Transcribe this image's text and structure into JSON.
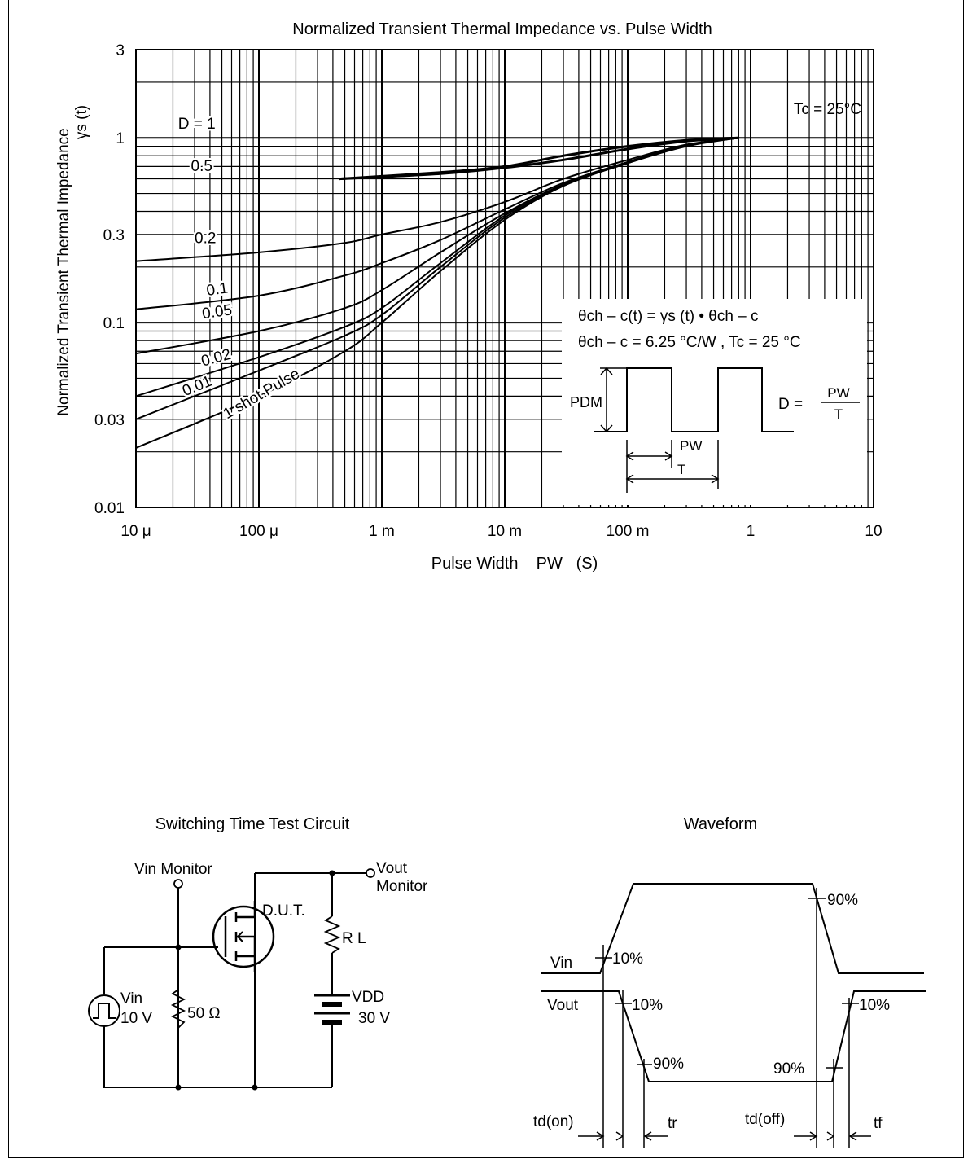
{
  "chart_data": {
    "type": "line",
    "title": "Normalized Transient Thermal Impedance vs. Pulse Width",
    "xlabel": "Pulse Width    PW   (S)",
    "ylabel_line1": "Normalized Transient Thermal Impedance",
    "ylabel_line2": "γs  (t)",
    "x_scale": "log",
    "y_scale": "log",
    "xlim": [
      1e-05,
      10
    ],
    "ylim": [
      0.01,
      3
    ],
    "grid": true,
    "x_ticks": [
      {
        "value": 1e-05,
        "label": "10 μ"
      },
      {
        "value": 0.0001,
        "label": "100 μ"
      },
      {
        "value": 0.001,
        "label": "1 m"
      },
      {
        "value": 0.01,
        "label": "10 m"
      },
      {
        "value": 0.1,
        "label": "100 m"
      },
      {
        "value": 1,
        "label": "1"
      },
      {
        "value": 10,
        "label": "10"
      }
    ],
    "y_ticks": [
      {
        "value": 0.01,
        "label": "0.01"
      },
      {
        "value": 0.03,
        "label": "0.03"
      },
      {
        "value": 0.1,
        "label": "0.1"
      },
      {
        "value": 0.3,
        "label": "0.3"
      },
      {
        "value": 1,
        "label": "1"
      },
      {
        "value": 3,
        "label": "3"
      }
    ],
    "series": [
      {
        "name": "D = 1",
        "points": [
          [
            0.00045,
            0.6
          ],
          [
            0.003,
            0.65
          ],
          [
            0.01,
            0.7
          ],
          [
            0.03,
            0.8
          ],
          [
            0.1,
            0.9
          ],
          [
            0.3,
            0.97
          ],
          [
            0.8,
            1.0
          ]
        ]
      },
      {
        "name": "0.5",
        "points": [
          [
            0.00045,
            0.6
          ],
          [
            0.003,
            0.64
          ],
          [
            0.01,
            0.69
          ],
          [
            0.03,
            0.76
          ],
          [
            0.1,
            0.87
          ],
          [
            0.3,
            0.96
          ],
          [
            0.8,
            1.0
          ]
        ]
      },
      {
        "name": "0.2",
        "points": [
          [
            1e-05,
            0.215
          ],
          [
            0.0001,
            0.24
          ],
          [
            0.0005,
            0.27
          ],
          [
            0.001,
            0.3
          ],
          [
            0.003,
            0.35
          ],
          [
            0.01,
            0.45
          ],
          [
            0.03,
            0.6
          ],
          [
            0.1,
            0.76
          ],
          [
            0.3,
            0.92
          ],
          [
            0.8,
            1.0
          ]
        ]
      },
      {
        "name": "0.1",
        "points": [
          [
            1e-05,
            0.118
          ],
          [
            0.0001,
            0.14
          ],
          [
            0.0005,
            0.18
          ],
          [
            0.001,
            0.21
          ],
          [
            0.003,
            0.28
          ],
          [
            0.01,
            0.41
          ],
          [
            0.03,
            0.57
          ],
          [
            0.1,
            0.74
          ],
          [
            0.3,
            0.91
          ],
          [
            0.8,
            1.0
          ]
        ]
      },
      {
        "name": "0.05",
        "points": [
          [
            1e-05,
            0.068
          ],
          [
            0.0001,
            0.09
          ],
          [
            0.0005,
            0.12
          ],
          [
            0.001,
            0.15
          ],
          [
            0.003,
            0.24
          ],
          [
            0.01,
            0.39
          ],
          [
            0.03,
            0.56
          ],
          [
            0.1,
            0.74
          ],
          [
            0.3,
            0.91
          ],
          [
            0.8,
            1.0
          ]
        ]
      },
      {
        "name": "0.02",
        "points": [
          [
            1e-05,
            0.04
          ],
          [
            0.0001,
            0.065
          ],
          [
            0.0005,
            0.095
          ],
          [
            0.001,
            0.12
          ],
          [
            0.003,
            0.21
          ],
          [
            0.01,
            0.38
          ],
          [
            0.03,
            0.555
          ],
          [
            0.1,
            0.74
          ],
          [
            0.3,
            0.91
          ],
          [
            0.8,
            1.0
          ]
        ]
      },
      {
        "name": "0.01",
        "points": [
          [
            1e-05,
            0.03
          ],
          [
            0.0001,
            0.055
          ],
          [
            0.0005,
            0.085
          ],
          [
            0.001,
            0.11
          ],
          [
            0.003,
            0.2
          ],
          [
            0.01,
            0.37
          ],
          [
            0.03,
            0.55
          ],
          [
            0.1,
            0.73
          ],
          [
            0.3,
            0.91
          ],
          [
            0.8,
            1.0
          ]
        ]
      },
      {
        "name": "1 shot Pulse",
        "points": [
          [
            1e-05,
            0.021
          ],
          [
            0.0001,
            0.04
          ],
          [
            0.0005,
            0.07
          ],
          [
            0.001,
            0.1
          ],
          [
            0.003,
            0.19
          ],
          [
            0.01,
            0.36
          ],
          [
            0.03,
            0.55
          ],
          [
            0.1,
            0.73
          ],
          [
            0.3,
            0.9
          ],
          [
            0.8,
            1.0
          ]
        ]
      }
    ],
    "series_labels": [
      {
        "text": "D = 1",
        "x": 2.2e-05,
        "y": 1.12,
        "rot": 0
      },
      {
        "text": "0.5",
        "x": 2.8e-05,
        "y": 0.66,
        "rot": 0
      },
      {
        "text": "0.2",
        "x": 3e-05,
        "y": 0.27,
        "rot": 0
      },
      {
        "text": "0.1",
        "x": 3.8e-05,
        "y": 0.14,
        "rot": -8
      },
      {
        "text": "0.05",
        "x": 3.5e-05,
        "y": 0.105,
        "rot": -8
      },
      {
        "text": "0.02",
        "x": 3.5e-05,
        "y": 0.058,
        "rot": -15
      },
      {
        "text": "0.01",
        "x": 2.5e-05,
        "y": 0.04,
        "rot": -22
      },
      {
        "text": "1 shot Pulse",
        "x": 5.5e-05,
        "y": 0.03,
        "rot": -30
      }
    ],
    "annotation_tc": "Tc = 25°C"
  },
  "inset": {
    "eq1": "θch – c(t) = γs (t) • θch – c",
    "eq2": "θch – c = 6.25 °C/W , Tc = 25 °C",
    "pdm": "PDM",
    "pw": "PW",
    "t": "T",
    "d_eq": "D =",
    "d_num": "PW",
    "d_den": "T"
  },
  "circuit": {
    "title": "Switching Time Test Circuit",
    "vin_monitor": "Vin Monitor",
    "vout_monitor_1": "Vout",
    "vout_monitor_2": "Monitor",
    "dut": "D.U.T.",
    "rl": "R L",
    "vin_1": "Vin",
    "vin_2": "10 V",
    "r50": "50 Ω",
    "vdd": "VDD",
    "vdd_val": "30 V"
  },
  "waveform": {
    "title": "Waveform",
    "vin": "Vin",
    "vout": "Vout",
    "p10_a": "10%",
    "p90_a": "90%",
    "p10_b": "10%",
    "p90_b": "90%",
    "p90_c": "90%",
    "p10_c": "10%",
    "td_on": "td(on)",
    "tr": "tr",
    "td_off": "td(off)",
    "tf": "tf"
  }
}
